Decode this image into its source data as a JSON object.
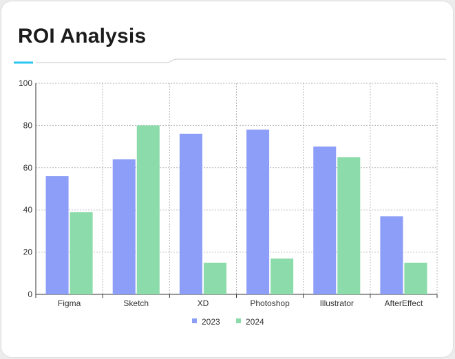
{
  "page": {
    "title": "ROI Analysis"
  },
  "colors": {
    "accent": "#29c7ef",
    "series_2023": "#8c9ef7",
    "series_2024": "#8cdbaa",
    "grid": "#b5b5b5"
  },
  "chart_data": {
    "type": "bar",
    "title": "",
    "xlabel": "",
    "ylabel": "",
    "categories": [
      "Figma",
      "Sketch",
      "XD",
      "Photoshop",
      "Illustrator",
      "AfterEffect"
    ],
    "series": [
      {
        "name": "2023",
        "values": [
          56,
          64,
          76,
          78,
          70,
          37
        ]
      },
      {
        "name": "2024",
        "values": [
          39,
          80,
          15,
          17,
          65,
          15
        ]
      }
    ],
    "ylim": [
      0,
      100
    ],
    "yticks": [
      0,
      20,
      40,
      60,
      80,
      100
    ],
    "grid": true,
    "legend": "bottom-center"
  }
}
